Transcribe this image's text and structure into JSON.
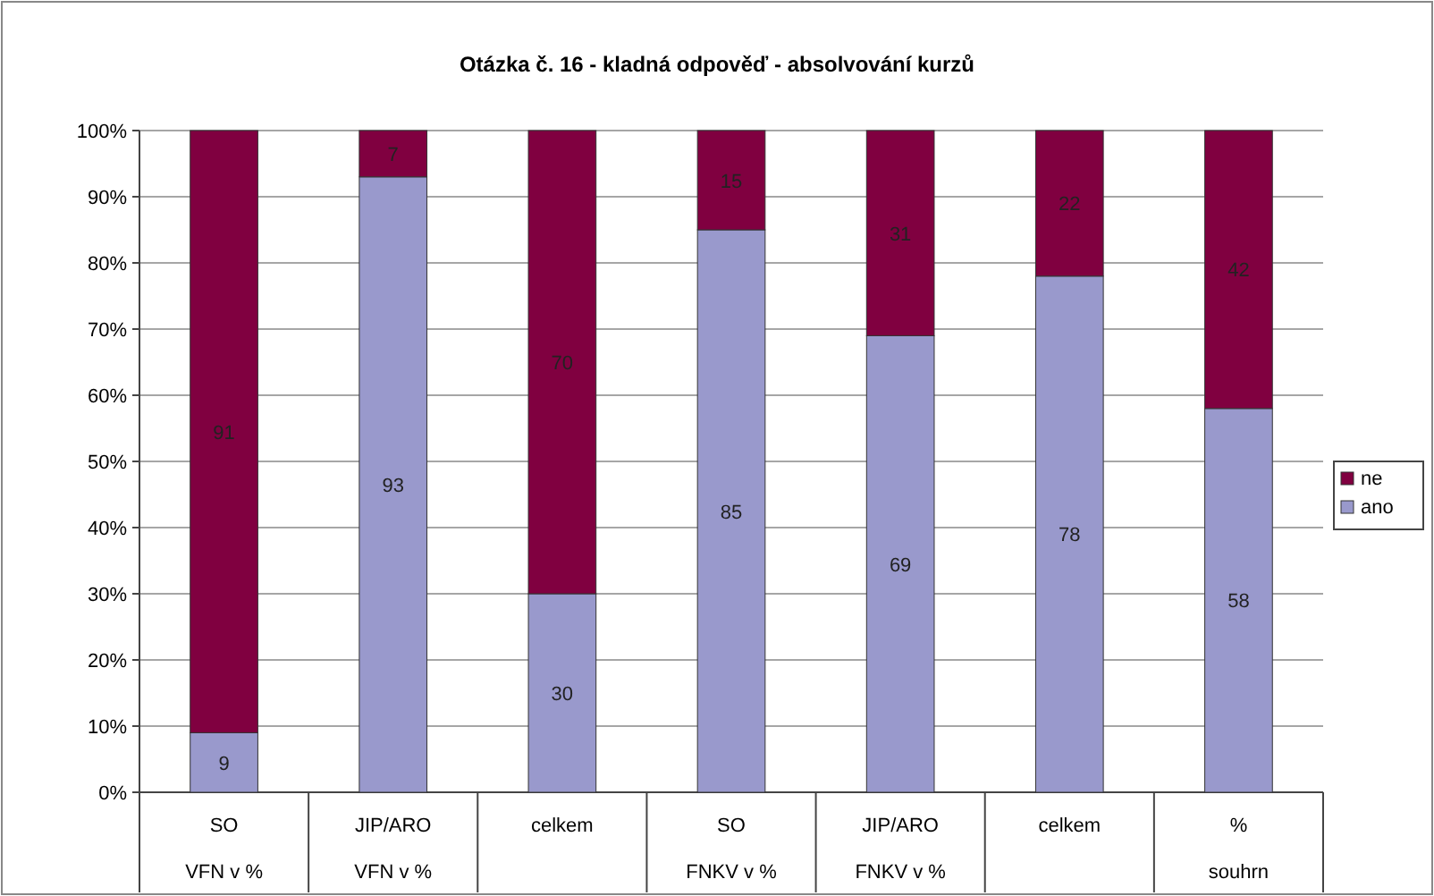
{
  "chart_data": {
    "type": "bar",
    "title": "Otázka č. 16 - kladná odpověď - absolvování kurzů",
    "stacked": true,
    "categories": [
      "SO\nVFN v %",
      "JIP/ARO\nVFN v %",
      "celkem",
      "SO\nFNKV v %",
      "JIP/ARO\nFNKV v %",
      "celkem",
      "%\nsouhrn"
    ],
    "series": [
      {
        "name": "ano",
        "color": "#9999cc",
        "values": [
          9,
          93,
          30,
          85,
          69,
          78,
          58
        ]
      },
      {
        "name": "ne",
        "color": "#800040",
        "values": [
          91,
          7,
          70,
          15,
          31,
          22,
          42
        ]
      }
    ],
    "ylim": [
      0,
      100
    ],
    "yticks": [
      {
        "value": 0,
        "label": "0%"
      },
      {
        "value": 10,
        "label": "10%"
      },
      {
        "value": 20,
        "label": "20%"
      },
      {
        "value": 30,
        "label": "30%"
      },
      {
        "value": 40,
        "label": "40%"
      },
      {
        "value": 50,
        "label": "50%"
      },
      {
        "value": 60,
        "label": "60%"
      },
      {
        "value": 70,
        "label": "70%"
      },
      {
        "value": 80,
        "label": "80%"
      },
      {
        "value": 90,
        "label": "90%"
      },
      {
        "value": 100,
        "label": "100%"
      }
    ],
    "grid": "y",
    "data_labels": true,
    "legend": "right"
  }
}
